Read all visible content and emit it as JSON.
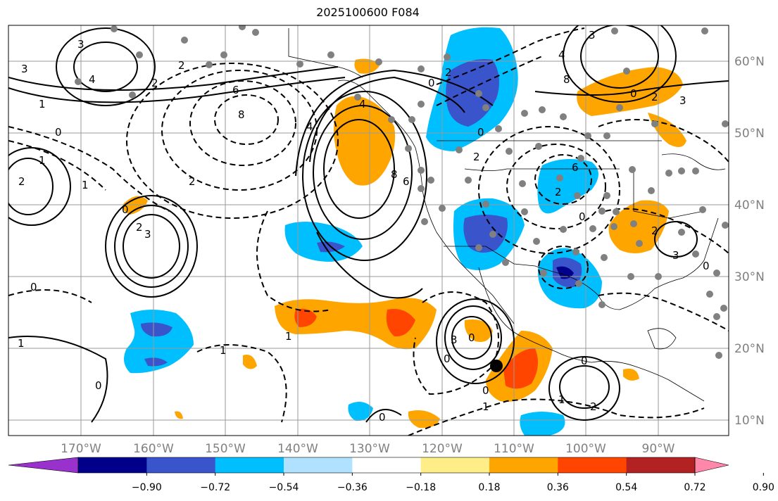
{
  "title": "2025100600 F084",
  "lat_labels": [
    "60°N",
    "50°N",
    "40°N",
    "30°N",
    "20°N",
    "10°N"
  ],
  "lon_labels": [
    "170°W",
    "160°W",
    "150°W",
    "140°W",
    "130°W",
    "120°W",
    "110°W",
    "100°W",
    "90°W"
  ],
  "colorbar": {
    "ticks": [
      "−0.90",
      "−0.72",
      "−0.54",
      "−0.36",
      "−0.18",
      "0.18",
      "0.36",
      "0.54",
      "0.72",
      "0.90"
    ],
    "colors": [
      "#9932cc",
      "#00008b",
      "#3a54cc",
      "#00bfff",
      "#b0e2ff",
      "#ffffff",
      "#ffee88",
      "#ffa500",
      "#ff4500",
      "#b22222",
      "#ff88aa"
    ]
  },
  "contour_labels": [
    "3",
    "4",
    "2",
    "2",
    "3",
    "1",
    "0",
    "1",
    "6",
    "8",
    "4",
    "2",
    "2",
    "1",
    "0",
    "2",
    "3",
    "0",
    "8",
    "6",
    "4",
    "0",
    "2",
    "4",
    "8",
    "3",
    "0",
    "2",
    "3",
    "0",
    "2",
    "6",
    "2",
    "0",
    "2",
    "3",
    "0",
    "1",
    "1",
    "0",
    "0",
    "1",
    "3",
    "0",
    "0",
    "1",
    "2",
    "0",
    "1",
    "0"
  ]
}
